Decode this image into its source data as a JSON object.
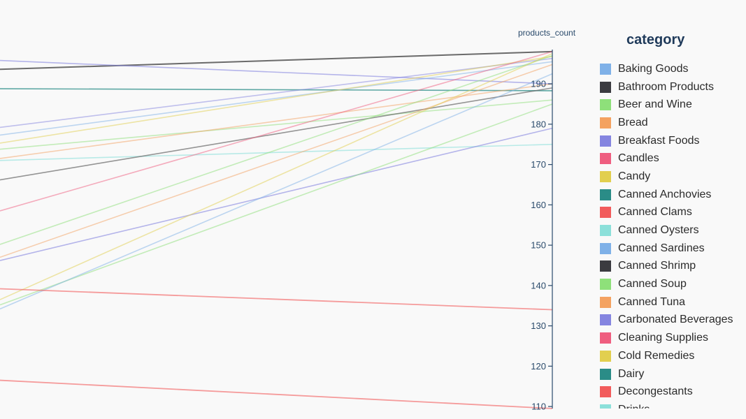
{
  "chart_data": {
    "type": "parallel-coordinates",
    "axis": {
      "label": "products_count",
      "ticks": [
        110,
        120,
        130,
        140,
        150,
        160,
        170,
        180,
        190
      ]
    },
    "ylim": [
      109.5,
      198.5
    ],
    "legend_title": "category",
    "legend": [
      {
        "name": "Baking Goods",
        "color": "#7fb1e8"
      },
      {
        "name": "Bathroom Products",
        "color": "#3b3b40"
      },
      {
        "name": "Beer and Wine",
        "color": "#8ee07a"
      },
      {
        "name": "Bread",
        "color": "#f4a261"
      },
      {
        "name": "Breakfast Foods",
        "color": "#8585e0"
      },
      {
        "name": "Candles",
        "color": "#ef5e80"
      },
      {
        "name": "Candy",
        "color": "#e2cf4f"
      },
      {
        "name": "Canned Anchovies",
        "color": "#2a8c87"
      },
      {
        "name": "Canned Clams",
        "color": "#f25c5c"
      },
      {
        "name": "Canned Oysters",
        "color": "#8ce0da"
      },
      {
        "name": "Canned Sardines",
        "color": "#7fb1e8"
      },
      {
        "name": "Canned Shrimp",
        "color": "#3b3b40"
      },
      {
        "name": "Canned Soup",
        "color": "#8ee07a"
      },
      {
        "name": "Canned Tuna",
        "color": "#f4a261"
      },
      {
        "name": "Carbonated Beverages",
        "color": "#8585e0"
      },
      {
        "name": "Cleaning Supplies",
        "color": "#ef5e80"
      },
      {
        "name": "Cold Remedies",
        "color": "#e2cf4f"
      },
      {
        "name": "Dairy",
        "color": "#2a8c87"
      },
      {
        "name": "Decongestants",
        "color": "#f25c5c"
      },
      {
        "name": "Drinks",
        "color": "#8ce0da"
      }
    ],
    "lines": [
      {
        "left": 193.6,
        "right": 198.0,
        "color": "#6a6a6a",
        "opacity": 1.0,
        "width": 2
      },
      {
        "left": 195.8,
        "right": 190.0,
        "color": "#8585e0",
        "opacity": 0.6,
        "width": 1.6
      },
      {
        "left": 188.8,
        "right": 188.3,
        "color": "#2a8c87",
        "opacity": 0.75,
        "width": 1.6
      },
      {
        "left": 179.2,
        "right": 196.3,
        "color": "#8585e0",
        "opacity": 0.5,
        "width": 1.6
      },
      {
        "left": 177.3,
        "right": 195.5,
        "color": "#7fb1e8",
        "opacity": 0.5,
        "width": 1.6
      },
      {
        "left": 175.3,
        "right": 196.8,
        "color": "#e2cf4f",
        "opacity": 0.5,
        "width": 1.6
      },
      {
        "left": 173.8,
        "right": 186.0,
        "color": "#8ee07a",
        "opacity": 0.5,
        "width": 1.6
      },
      {
        "left": 171.5,
        "right": 190.0,
        "color": "#f4a261",
        "opacity": 0.5,
        "width": 1.6
      },
      {
        "left": 171.0,
        "right": 175.0,
        "color": "#8ce0da",
        "opacity": 0.6,
        "width": 1.6
      },
      {
        "left": 166.2,
        "right": 189.0,
        "color": "#6a6a6a",
        "opacity": 0.7,
        "width": 1.6
      },
      {
        "left": 158.5,
        "right": 198.0,
        "color": "#ef5e80",
        "opacity": 0.5,
        "width": 1.6
      },
      {
        "left": 150.2,
        "right": 197.0,
        "color": "#8ee07a",
        "opacity": 0.5,
        "width": 1.6
      },
      {
        "left": 147.0,
        "right": 194.8,
        "color": "#f4a261",
        "opacity": 0.5,
        "width": 1.6
      },
      {
        "left": 146.2,
        "right": 179.0,
        "color": "#8585e0",
        "opacity": 0.6,
        "width": 1.6
      },
      {
        "left": 136.5,
        "right": 197.5,
        "color": "#e2cf4f",
        "opacity": 0.5,
        "width": 1.6
      },
      {
        "left": 135.2,
        "right": 185.0,
        "color": "#8ee07a",
        "opacity": 0.5,
        "width": 1.6
      },
      {
        "left": 134.2,
        "right": 192.5,
        "color": "#7fb1e8",
        "opacity": 0.5,
        "width": 1.6
      },
      {
        "left": 139.2,
        "right": 134.0,
        "color": "#f25c5c",
        "opacity": 0.6,
        "width": 1.8
      },
      {
        "left": 116.5,
        "right": 109.5,
        "color": "#f25c5c",
        "opacity": 0.6,
        "width": 1.8
      }
    ]
  }
}
